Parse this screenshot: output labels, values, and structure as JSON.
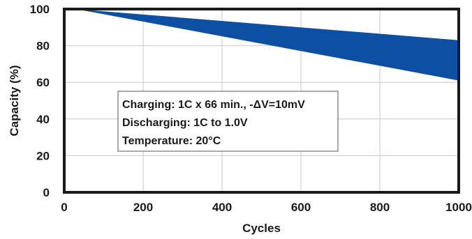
{
  "chart_data": {
    "type": "area",
    "title": "",
    "xlabel": "Cycles",
    "ylabel": "Capacity (%)",
    "xlim": [
      0,
      1000
    ],
    "ylim": [
      0,
      100
    ],
    "x_ticks": [
      0,
      200,
      400,
      600,
      800,
      1000
    ],
    "y_ticks": [
      0,
      20,
      40,
      60,
      80,
      100
    ],
    "grid": true,
    "band": {
      "color": "#0d4fa3",
      "x": [
        30,
        1000
      ],
      "upper": [
        100,
        83
      ],
      "lower": [
        100,
        61
      ]
    },
    "annotation": {
      "lines": [
        "Charging: 1C x 66 min., -ΔV=10mV",
        "Discharging: 1C to 1.0V",
        "Temperature: 20°C"
      ]
    }
  }
}
